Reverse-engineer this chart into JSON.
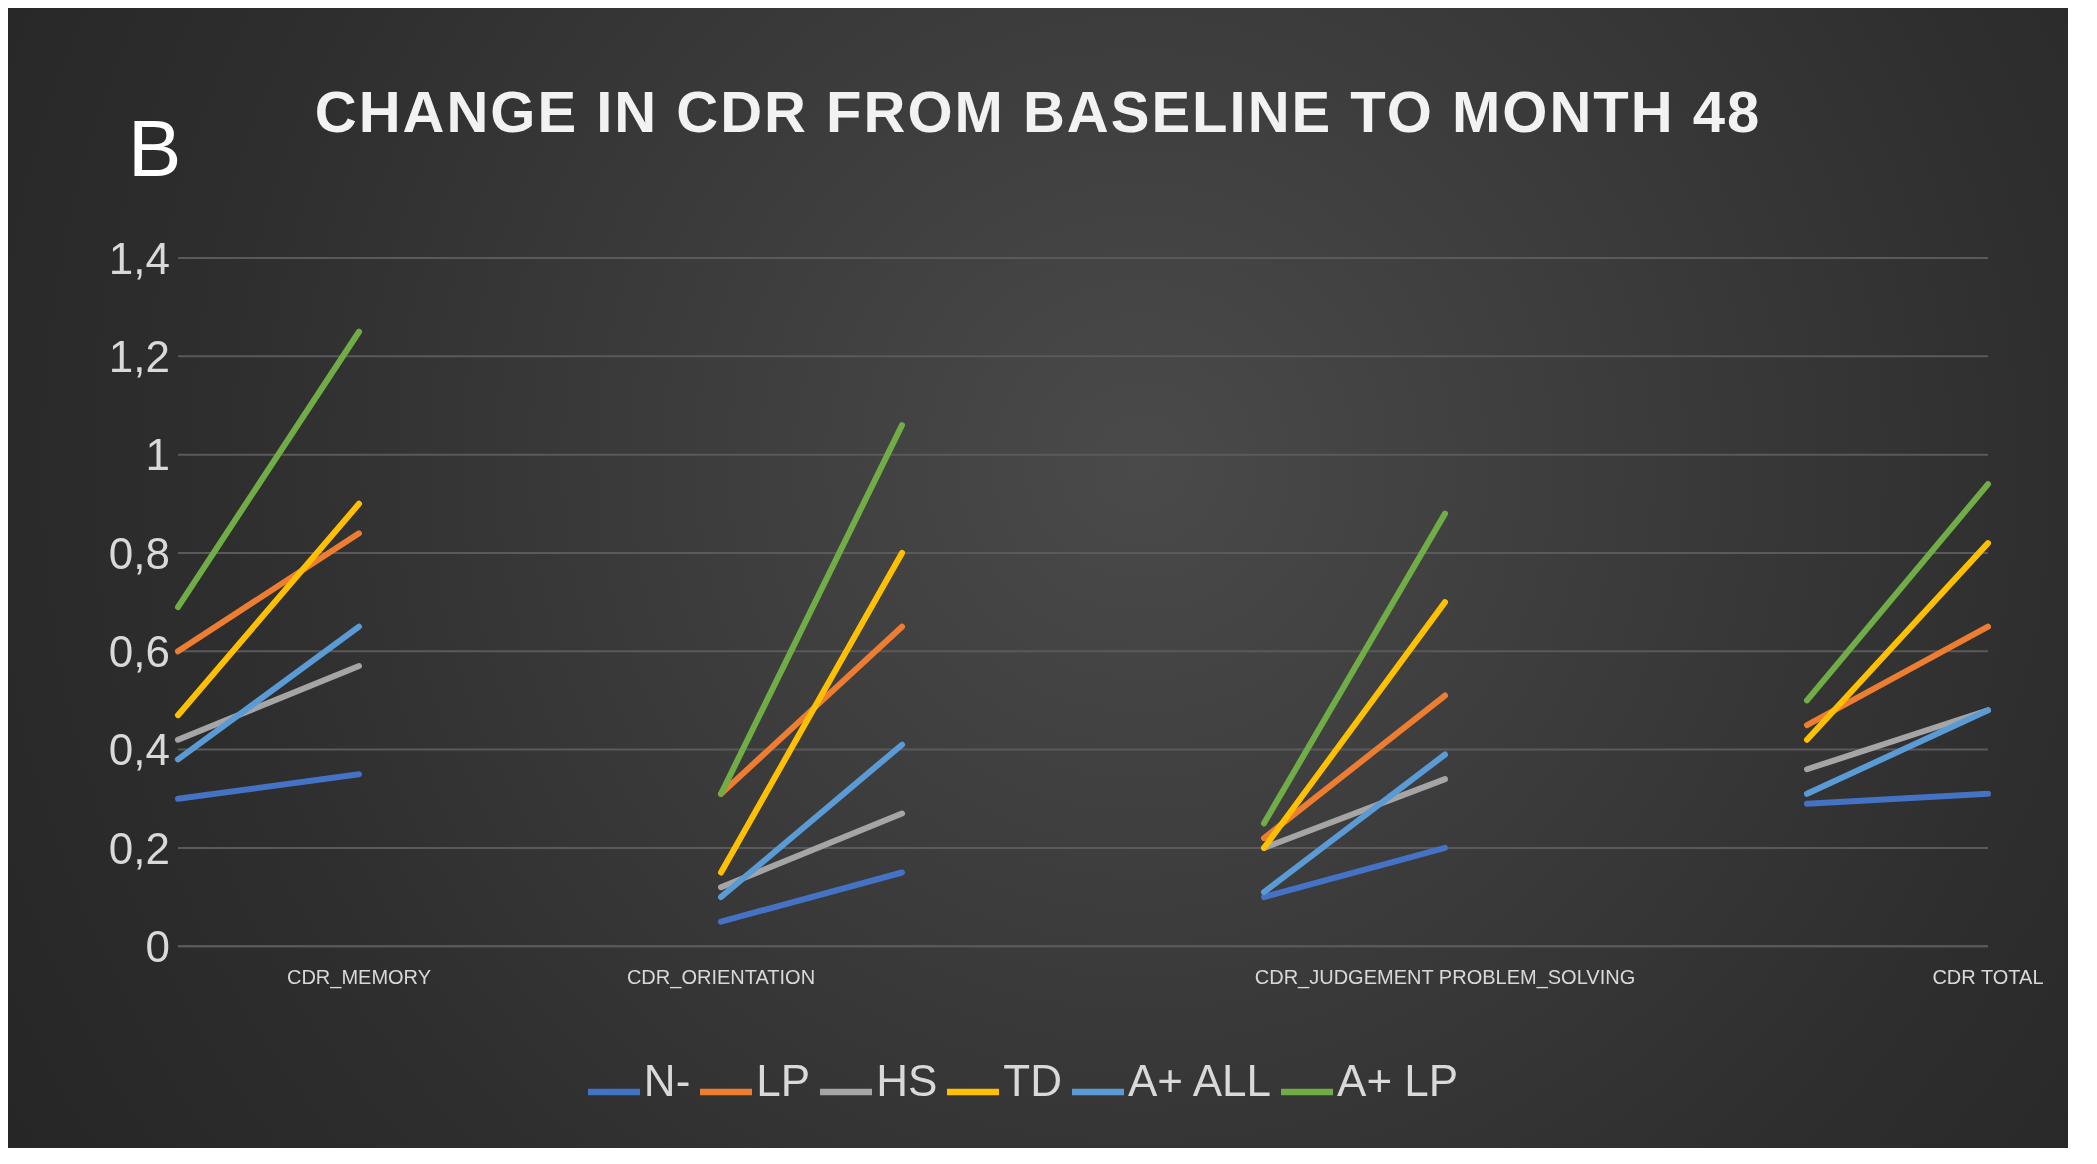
{
  "chart_data": {
    "type": "line",
    "title": "CHANGE IN CDR FROM BASELINE TO MONTH 48",
    "annotations": [
      "B"
    ],
    "categories": [
      null,
      "CDR_MEMORY",
      null,
      "CDR_ORIENTATION",
      null,
      null,
      null,
      "CDR_JUDGEMENT PROBLEM_SOLVING",
      null,
      null,
      "CDR TOTAL"
    ],
    "series": [
      {
        "name": "N-",
        "color": "#4472c4",
        "values": [
          0.3,
          0.35,
          null,
          0.05,
          0.15,
          null,
          0.1,
          0.2,
          null,
          0.29,
          0.31
        ]
      },
      {
        "name": "LP",
        "color": "#ed7d31",
        "values": [
          0.6,
          0.84,
          null,
          0.31,
          0.65,
          null,
          0.22,
          0.51,
          null,
          0.45,
          0.65
        ]
      },
      {
        "name": "HS",
        "color": "#a5a5a5",
        "values": [
          0.42,
          0.57,
          null,
          0.12,
          0.27,
          null,
          0.2,
          0.34,
          null,
          0.36,
          0.48
        ]
      },
      {
        "name": "TD",
        "color": "#ffc000",
        "values": [
          0.47,
          0.9,
          null,
          0.15,
          0.8,
          null,
          0.2,
          0.7,
          null,
          0.42,
          0.82
        ]
      },
      {
        "name": "A+ ALL",
        "color": "#5b9bd5",
        "values": [
          0.38,
          0.65,
          null,
          0.1,
          0.41,
          null,
          0.11,
          0.39,
          null,
          0.31,
          0.48
        ]
      },
      {
        "name": "A+ LP",
        "color": "#70ad47",
        "values": [
          0.69,
          1.25,
          null,
          0.31,
          1.06,
          null,
          0.25,
          0.88,
          null,
          0.5,
          0.94
        ]
      }
    ],
    "ylim": [
      0,
      1.4
    ],
    "yticks": [
      0,
      {
        "value": 0.2,
        "label": "0,2"
      },
      {
        "value": 0.4,
        "label": "0,4"
      },
      {
        "value": 0.6,
        "label": "0,6"
      },
      {
        "value": 0.8,
        "label": "0,8"
      },
      1,
      {
        "value": 1.2,
        "label": "1,2"
      },
      {
        "value": 1.4,
        "label": "1,4"
      }
    ],
    "grid": "y",
    "legend": "bottom",
    "marker": "none",
    "line_style": "solid"
  }
}
